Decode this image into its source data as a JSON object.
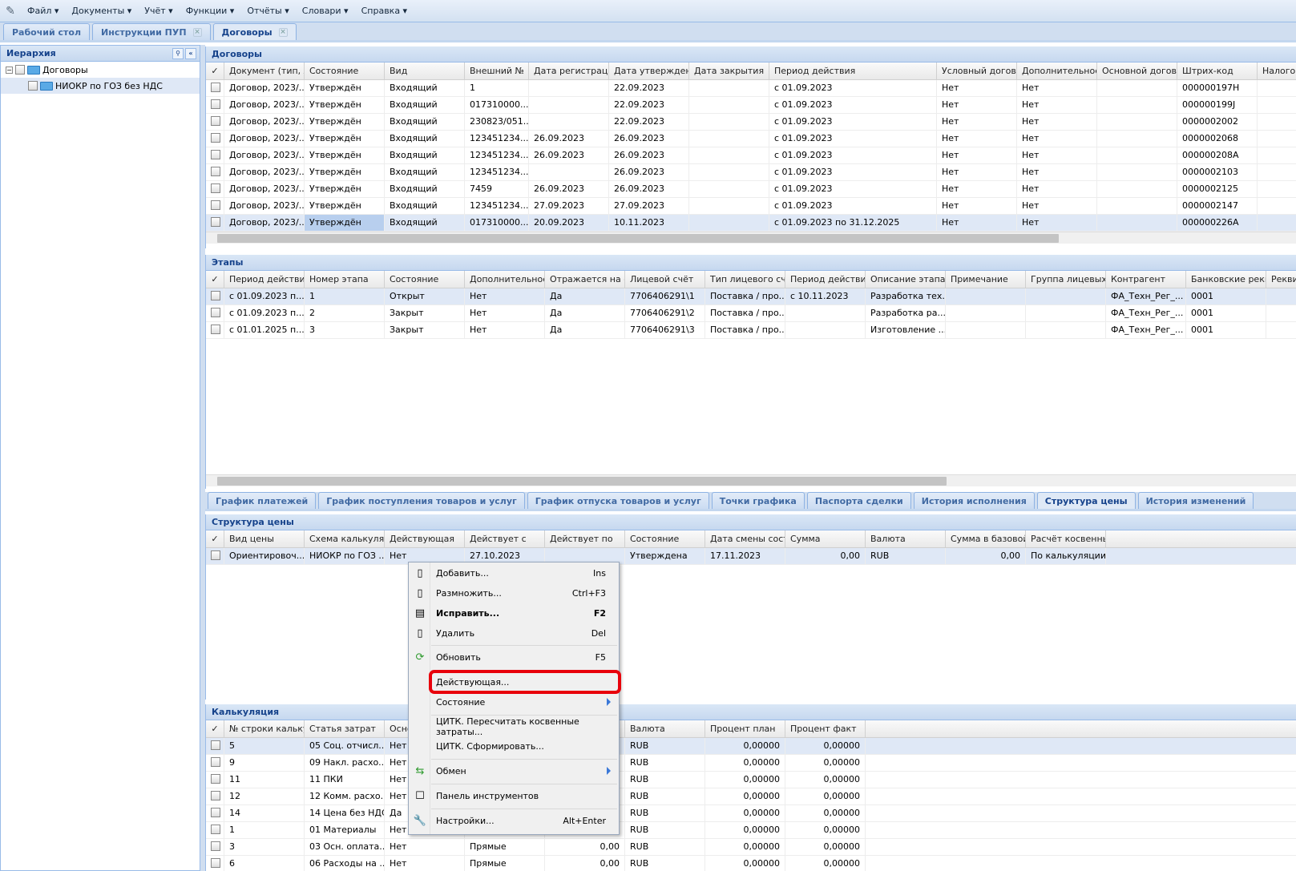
{
  "menubar": {
    "items": [
      "Файл ▾",
      "Документы ▾",
      "Учёт ▾",
      "Функции ▾",
      "Отчёты ▾",
      "Словари ▾",
      "Справка ▾"
    ]
  },
  "tabs": [
    {
      "label": "Рабочий стол",
      "closable": false
    },
    {
      "label": "Инструкции ПУП",
      "closable": true
    },
    {
      "label": "Договоры",
      "closable": true,
      "active": true
    }
  ],
  "hierarchy": {
    "title": "Иерархия",
    "items": [
      {
        "label": "Договоры"
      },
      {
        "label": "НИОКР по ГОЗ без НДС",
        "selected": true
      }
    ]
  },
  "contracts": {
    "title": "Договоры",
    "columns": [
      "✓",
      "Документ (тип, №",
      "Состояние",
      "Вид",
      "Внешний №",
      "Дата регистрации",
      "Дата утверждения",
      "Дата закрытия",
      "Период действия",
      "Условный договор",
      "Дополнительное с",
      "Основной договор",
      "Штрих-код",
      "Налогов"
    ],
    "rows": [
      [
        "Договор, 2023/...",
        "Утверждён",
        "Входящий",
        "1",
        "",
        "22.09.2023",
        "",
        "с 01.09.2023",
        "Нет",
        "Нет",
        "",
        "000000197H",
        ""
      ],
      [
        "Договор, 2023/...",
        "Утверждён",
        "Входящий",
        "017310000...",
        "",
        "22.09.2023",
        "",
        "с 01.09.2023",
        "Нет",
        "Нет",
        "",
        "000000199J",
        ""
      ],
      [
        "Договор, 2023/...",
        "Утверждён",
        "Входящий",
        "230823/051...",
        "",
        "22.09.2023",
        "",
        "с 01.09.2023",
        "Нет",
        "Нет",
        "",
        "0000002002",
        ""
      ],
      [
        "Договор, 2023/...",
        "Утверждён",
        "Входящий",
        "123451234...",
        "26.09.2023",
        "26.09.2023",
        "",
        "с 01.09.2023",
        "Нет",
        "Нет",
        "",
        "0000002068",
        ""
      ],
      [
        "Договор, 2023/...",
        "Утверждён",
        "Входящий",
        "123451234...",
        "26.09.2023",
        "26.09.2023",
        "",
        "с 01.09.2023",
        "Нет",
        "Нет",
        "",
        "000000208A",
        ""
      ],
      [
        "Договор, 2023/...",
        "Утверждён",
        "Входящий",
        "123451234...",
        "",
        "26.09.2023",
        "",
        "с 01.09.2023",
        "Нет",
        "Нет",
        "",
        "0000002103",
        ""
      ],
      [
        "Договор, 2023/...",
        "Утверждён",
        "Входящий",
        "7459",
        "26.09.2023",
        "26.09.2023",
        "",
        "с 01.09.2023",
        "Нет",
        "Нет",
        "",
        "0000002125",
        ""
      ],
      [
        "Договор, 2023/...",
        "Утверждён",
        "Входящий",
        "123451234...",
        "27.09.2023",
        "27.09.2023",
        "",
        "с 01.09.2023",
        "Нет",
        "Нет",
        "",
        "0000002147",
        ""
      ],
      [
        "Договор, 2023/...",
        "Утверждён",
        "Входящий",
        "017310000...",
        "20.09.2023",
        "10.11.2023",
        "",
        "с 01.09.2023 по 31.12.2025",
        "Нет",
        "Нет",
        "",
        "000000226A",
        ""
      ]
    ],
    "selected_row": 8
  },
  "stages": {
    "title": "Этапы",
    "columns": [
      "✓",
      "Период действия...",
      "Номер этапа",
      "Состояние",
      "Дополнительное с",
      "Отражается на сум",
      "Лицевой счёт",
      "Тип лицевого счёт",
      "Период действия л",
      "Описание этапа",
      "Примечание",
      "Группа лицевых сч",
      "Контрагент",
      "Банковские реквиз",
      "Рекви"
    ],
    "rows": [
      [
        "с 01.09.2023 п...",
        "1",
        "Открыт",
        "Нет",
        "Да",
        "7706406291\\1",
        "Поставка / про...",
        "с 10.11.2023",
        "Разработка тех...",
        "",
        "",
        "ФА_Техн_Рег_...",
        "0001",
        ""
      ],
      [
        "с 01.09.2023 п...",
        "2",
        "Закрыт",
        "Нет",
        "Да",
        "7706406291\\2",
        "Поставка / про...",
        "",
        "Разработка ра...",
        "",
        "",
        "ФА_Техн_Рег_...",
        "0001",
        ""
      ],
      [
        "с 01.01.2025 п...",
        "3",
        "Закрыт",
        "Нет",
        "Да",
        "7706406291\\3",
        "Поставка / про...",
        "",
        "Изготовление ...",
        "",
        "",
        "ФА_Техн_Рег_...",
        "0001",
        ""
      ]
    ],
    "selected_row": 0
  },
  "detail_tabs": [
    "График платежей",
    "График поступления товаров и услуг",
    "График отпуска товаров и услуг",
    "Точки графика",
    "Паспорта сделки",
    "История исполнения",
    "Структура цены",
    "История изменений"
  ],
  "detail_active_tab": 6,
  "price_structure": {
    "title": "Структура цены",
    "columns": [
      "✓",
      "Вид цены",
      "Схема калькуляци",
      "Действующая",
      "Действует с",
      "Действует по",
      "Состояние",
      "Дата смены состоя",
      "Сумма",
      "Валюта",
      "Сумма в базовой в",
      "Расчёт косвенных"
    ],
    "rows": [
      [
        "Ориентировоч...",
        "НИОКР по ГОЗ ...",
        "Нет",
        "27.10.2023",
        "",
        "Утверждена",
        "17.11.2023",
        "0,00",
        "RUB",
        "0,00",
        "По калькуляции"
      ]
    ],
    "selected_row": 0
  },
  "calculation": {
    "title": "Калькуляция",
    "columns": [
      "✓",
      "№ строки калькул",
      "Статья затрат",
      "Осно",
      "",
      "",
      "Валюта",
      "Процент план",
      "Процент факт"
    ],
    "rows": [
      [
        "5",
        "05 Соц. отчисл...",
        "Нет",
        "",
        "",
        "RUB",
        "0,00000",
        "0,00000"
      ],
      [
        "9",
        "09 Накл. расхо...",
        "Нет",
        "",
        "",
        "RUB",
        "0,00000",
        "0,00000"
      ],
      [
        "11",
        "11 ПКИ",
        "Нет",
        "",
        "",
        "RUB",
        "0,00000",
        "0,00000"
      ],
      [
        "12",
        "12 Комм. расхо...",
        "Нет",
        "",
        "",
        "RUB",
        "0,00000",
        "0,00000"
      ],
      [
        "14",
        "14 Цена без НДС",
        "Да",
        "",
        "",
        "RUB",
        "0,00000",
        "0,00000"
      ],
      [
        "1",
        "01 Материалы",
        "Нет",
        "Прямые",
        "0,00",
        "RUB",
        "0,00000",
        "0,00000"
      ],
      [
        "3",
        "03 Осн. оплата...",
        "Нет",
        "Прямые",
        "0,00",
        "RUB",
        "0,00000",
        "0,00000"
      ],
      [
        "6",
        "06 Расходы на ...",
        "Нет",
        "Прямые",
        "0,00",
        "RUB",
        "0,00000",
        "0,00000"
      ]
    ],
    "selected_row": 0
  },
  "context_menu": {
    "items": [
      {
        "label": "Добавить...",
        "shortcut": "Ins",
        "icon": "document-icon"
      },
      {
        "label": "Размножить...",
        "shortcut": "Ctrl+F3",
        "icon": "document-add-icon"
      },
      {
        "label": "Исправить...",
        "shortcut": "F2",
        "icon": "edit-icon",
        "bold": true
      },
      {
        "label": "Удалить",
        "shortcut": "Del",
        "icon": "document-delete-icon"
      },
      {
        "label": "Обновить",
        "shortcut": "F5",
        "icon": "refresh-icon"
      },
      {
        "label": "Действующая...",
        "shortcut": "",
        "icon": "",
        "highlighted": true
      },
      {
        "label": "Состояние",
        "shortcut": "",
        "icon": "",
        "submenu": true
      },
      {
        "label": "ЦИТК. Пересчитать косвенные затраты...",
        "shortcut": "",
        "icon": ""
      },
      {
        "label": "ЦИТК. Сформировать...",
        "shortcut": "",
        "icon": ""
      },
      {
        "label": "Обмен",
        "shortcut": "",
        "icon": "exchange-icon",
        "submenu": true
      },
      {
        "label": "Панель инструментов",
        "shortcut": "",
        "icon": "checkbox-icon"
      },
      {
        "label": "Настройки...",
        "shortcut": "Alt+Enter",
        "icon": "wrench-icon"
      }
    ]
  },
  "colors": {
    "accent": "#15428b",
    "selected_row": "#dfe8f6",
    "selected_cell": "#b8cfee",
    "highlight": "#e8000b"
  }
}
